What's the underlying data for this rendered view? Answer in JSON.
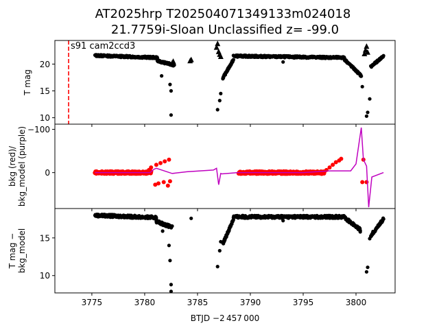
{
  "title_line1": "AT2025hrp  T202504071349133m024018",
  "title_line2": "21.7759i-Sloan Unclassified z= -99.0",
  "xlabel": "BTJD −2 457 000",
  "xticks": [
    3775,
    3780,
    3785,
    3790,
    3795,
    3800
  ],
  "xticklabels": [
    "3775",
    "3780",
    "3785",
    "3790",
    "3795",
    "3800"
  ],
  "xlim": [
    3771.5,
    3803.7
  ],
  "colors": {
    "data": "#000000",
    "bkg": "#ff0000",
    "bkg_model": "#bf00bf",
    "marker_line": "#ff0000"
  },
  "chart_data": [
    {
      "type": "scatter",
      "panel": "top",
      "ylabel": "T mag",
      "ylim": [
        24.4,
        8.8
      ],
      "yticks": [
        10,
        15,
        20
      ],
      "yticklabels": [
        "10",
        "15",
        "20"
      ],
      "annotation": "s91 cam2ccd3",
      "vline_x": 3772.8,
      "series": [
        {
          "segments": [
            {
              "x0": 3775.3,
              "x1": 3781.2,
              "y0": 21.6,
              "y1": 21.2
            },
            {
              "x0": 3781.2,
              "x1": 3782.8,
              "y0": 20.6,
              "y1": 19.8
            },
            {
              "x0": 3787.4,
              "x1": 3788.4,
              "y0": 17.4,
              "y1": 20.8
            },
            {
              "x0": 3788.4,
              "x1": 3798.9,
              "y0": 21.5,
              "y1": 21.2
            },
            {
              "x0": 3798.9,
              "x1": 3800.5,
              "y0": 20.9,
              "y1": 17.8
            },
            {
              "x0": 3801.4,
              "x1": 3802.6,
              "y0": 19.5,
              "y1": 21.5
            }
          ]
        },
        {
          "points": [
            [
              3782.5,
              10.5
            ],
            [
              3782.5,
              15.0
            ],
            [
              3782.4,
              16.2
            ],
            [
              3781.6,
              17.8
            ],
            [
              3786.9,
              11.5
            ],
            [
              3787.1,
              13.2
            ],
            [
              3787.2,
              14.5
            ],
            [
              3800.6,
              15.8
            ],
            [
              3801.0,
              10.3
            ],
            [
              3801.1,
              11.0
            ],
            [
              3801.3,
              13.5
            ],
            [
              3793.1,
              20.4
            ]
          ]
        },
        {
          "triangles": [
            [
              3782.6,
              20.2
            ],
            [
              3782.7,
              20.5
            ],
            [
              3784.3,
              20.6
            ],
            [
              3784.4,
              20.8
            ],
            [
              3786.9,
              23.8
            ],
            [
              3786.8,
              23.1
            ],
            [
              3787.0,
              22.3
            ],
            [
              3787.1,
              21.8
            ],
            [
              3787.2,
              21.4
            ],
            [
              3800.8,
              21.9
            ],
            [
              3800.9,
              22.6
            ],
            [
              3801.0,
              23.3
            ],
            [
              3801.1,
              22.2
            ]
          ]
        }
      ]
    },
    {
      "type": "scatter",
      "panel": "middle",
      "ylabel": "bkg (red)/\nbkg_model (purple)",
      "ylim": [
        -112,
        83
      ],
      "yticks": [
        0,
        -100
      ],
      "yticklabels": [
        "0",
        "−100"
      ],
      "series": [
        {
          "name": "bkg",
          "segments": [
            {
              "x0": 3775.3,
              "x1": 3780.6,
              "y0": 0,
              "y1": 0
            },
            {
              "x0": 3788.9,
              "x1": 3797.0,
              "y0": 0,
              "y1": 0
            }
          ],
          "points": [
            [
              3780.4,
              -6
            ],
            [
              3780.6,
              -12
            ],
            [
              3781.1,
              -18
            ],
            [
              3781.5,
              -22
            ],
            [
              3781.9,
              -26
            ],
            [
              3782.3,
              -30
            ],
            [
              3781.3,
              25
            ],
            [
              3781.0,
              28
            ],
            [
              3782.2,
              30
            ],
            [
              3782.4,
              20
            ],
            [
              3781.8,
              22
            ],
            [
              3797.2,
              -6
            ],
            [
              3797.5,
              -12
            ],
            [
              3797.8,
              -18
            ],
            [
              3798.1,
              -24
            ],
            [
              3798.4,
              -28
            ],
            [
              3798.6,
              -32
            ],
            [
              3800.6,
              22
            ],
            [
              3800.7,
              -30
            ],
            [
              3801.0,
              22
            ]
          ]
        },
        {
          "name": "bkg_model",
          "line": [
            [
              3775.3,
              0
            ],
            [
              3780.5,
              0
            ],
            [
              3780.9,
              -8
            ],
            [
              3781.1,
              -10
            ],
            [
              3782.6,
              2
            ],
            [
              3784,
              -2
            ],
            [
              3786.5,
              -6
            ],
            [
              3786.8,
              -10
            ],
            [
              3787.0,
              28
            ],
            [
              3787.2,
              2
            ],
            [
              3787.3,
              3
            ],
            [
              3788.8,
              0
            ],
            [
              3795.0,
              0
            ],
            [
              3797.5,
              -4
            ],
            [
              3799.5,
              -4
            ],
            [
              3800.0,
              -20
            ],
            [
              3800.5,
              -104
            ],
            [
              3800.7,
              -30
            ],
            [
              3801.0,
              -15
            ],
            [
              3801.2,
              80
            ],
            [
              3801.5,
              10
            ],
            [
              3802.6,
              0
            ]
          ]
        }
      ]
    },
    {
      "type": "scatter",
      "panel": "bottom",
      "ylabel": "T mag −\nbkg_model",
      "ylim": [
        18.9,
        7.7
      ],
      "yticks": [
        10,
        15
      ],
      "yticklabels": [
        "10",
        "15"
      ],
      "series": [
        {
          "segments": [
            {
              "x0": 3775.3,
              "x1": 3781.1,
              "y0": 18.0,
              "y1": 17.7
            },
            {
              "x0": 3781.1,
              "x1": 3782.6,
              "y0": 17.2,
              "y1": 16.4
            },
            {
              "x0": 3787.4,
              "x1": 3788.4,
              "y0": 14.2,
              "y1": 17.5
            },
            {
              "x0": 3788.4,
              "x1": 3799.0,
              "y0": 17.8,
              "y1": 17.8
            },
            {
              "x0": 3799.0,
              "x1": 3800.4,
              "y0": 17.6,
              "y1": 16.1
            },
            {
              "x0": 3801.4,
              "x1": 3802.6,
              "y0": 15.3,
              "y1": 17.5
            }
          ]
        },
        {
          "points": [
            [
              3782.5,
              7.9
            ],
            [
              3782.5,
              8.8
            ],
            [
              3782.4,
              12.0
            ],
            [
              3782.3,
              14.0
            ],
            [
              3781.7,
              15.9
            ],
            [
              3786.9,
              11.2
            ],
            [
              3787.1,
              13.3
            ],
            [
              3787.2,
              14.5
            ],
            [
              3784.4,
              17.6
            ],
            [
              3793.1,
              17.3
            ],
            [
              3801.0,
              10.5
            ],
            [
              3801.1,
              11.1
            ],
            [
              3801.3,
              14.9
            ],
            [
              3800.4,
              15.8
            ],
            [
              3802.6,
              17.5
            ]
          ]
        }
      ]
    }
  ]
}
